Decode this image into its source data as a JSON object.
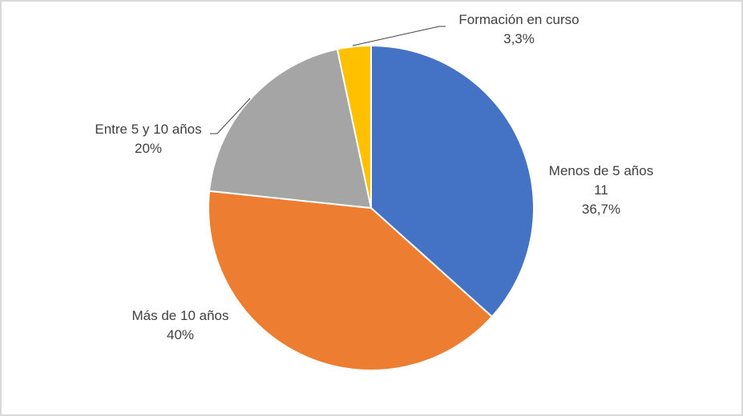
{
  "chart_data": {
    "type": "pie",
    "title": "",
    "categories": [
      "Menos de 5 años",
      "Más de 10 años",
      "Entre 5 y 10 años",
      "Formación en curso"
    ],
    "values": [
      11,
      12,
      6,
      1
    ],
    "percentages": [
      36.7,
      40,
      20,
      3.3
    ],
    "colors": [
      "#4472C4",
      "#ED7D31",
      "#A5A5A5",
      "#FFC000"
    ],
    "start_angle_deg": 0,
    "direction": "clockwise",
    "legend": "none",
    "data_labels": [
      {
        "name": "Menos de 5 años",
        "value": "11",
        "percent": "36,7%"
      },
      {
        "name": "Más de 10 años",
        "percent": "40%"
      },
      {
        "name": "Entre 5 y 10 años",
        "percent": "20%"
      },
      {
        "name": "Formación en curso",
        "percent": "3,3%"
      }
    ]
  }
}
